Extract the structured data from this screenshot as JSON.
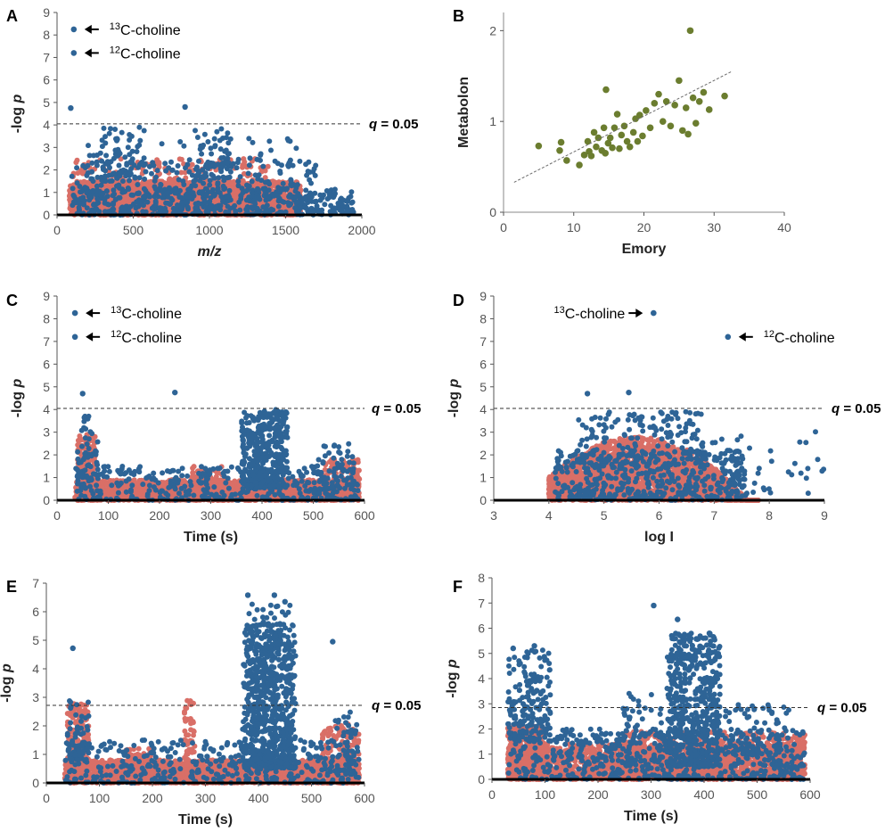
{
  "colors": {
    "blue": "#2E6496",
    "red": "#D96F67",
    "green": "#6B7D2F",
    "axis": "#000000",
    "threshold": "#333333"
  },
  "chart_data": [
    {
      "id": "A",
      "panel_label": "A",
      "type": "scatter",
      "xlabel": "m/z",
      "ylabel": "-log p",
      "xlim": [
        0,
        2000
      ],
      "ylim": [
        0,
        9
      ],
      "xticks": [
        0,
        500,
        1000,
        1500,
        2000
      ],
      "yticks": [
        0,
        1,
        2,
        3,
        4,
        5,
        6,
        7,
        8,
        9
      ],
      "threshold": {
        "y": 4.05,
        "label": "q = 0.05"
      },
      "legend": [
        {
          "label": "C-choline",
          "sup": "13",
          "x": 110,
          "y": 8.25
        },
        {
          "label": "C-choline",
          "sup": "12",
          "x": 110,
          "y": 7.2
        }
      ],
      "highlights": [
        {
          "x": 90,
          "y": 4.75
        },
        {
          "x": 840,
          "y": 4.8
        }
      ],
      "series": [
        {
          "name": "nonsignificant",
          "color": "red",
          "dense": true,
          "regions": [
            [
              80,
              1600,
              0,
              1.5,
              2500
            ],
            [
              90,
              1400,
              1,
              2.5,
              220
            ]
          ]
        },
        {
          "name": "significant",
          "color": "blue",
          "dense": true,
          "regions": [
            [
              90,
              1950,
              0,
              1.2,
              500
            ],
            [
              90,
              1700,
              0.8,
              2.4,
              200
            ],
            [
              200,
              600,
              1.5,
              3.9,
              60
            ],
            [
              900,
              1150,
              1.5,
              3.9,
              60
            ],
            [
              200,
              1600,
              2.2,
              3.4,
              60
            ]
          ]
        }
      ]
    },
    {
      "id": "B",
      "panel_label": "B",
      "type": "scatter",
      "xlabel": "Emory",
      "ylabel": "Metabolon",
      "xlim": [
        0,
        40
      ],
      "ylim": [
        0,
        2.2
      ],
      "xticks": [
        0,
        10,
        20,
        30,
        40
      ],
      "yticks": [
        0,
        1,
        2
      ],
      "trendline": {
        "x": [
          1.5,
          32.5
        ],
        "y": [
          0.33,
          1.55
        ]
      },
      "series": [
        {
          "name": "metabolites",
          "color": "green",
          "dense": false,
          "points": [
            [
              5,
              0.73
            ],
            [
              8,
              0.68
            ],
            [
              8.2,
              0.77
            ],
            [
              9,
              0.57
            ],
            [
              10.8,
              0.52
            ],
            [
              11.5,
              0.63
            ],
            [
              12,
              0.78
            ],
            [
              12.2,
              0.67
            ],
            [
              12.5,
              0.62
            ],
            [
              12.9,
              0.88
            ],
            [
              13.2,
              0.72
            ],
            [
              13.5,
              0.82
            ],
            [
              14,
              0.68
            ],
            [
              14.3,
              0.93
            ],
            [
              14.5,
              0.65
            ],
            [
              14.6,
              1.35
            ],
            [
              14.9,
              0.76
            ],
            [
              15.2,
              0.82
            ],
            [
              15.5,
              0.71
            ],
            [
              15.8,
              0.93
            ],
            [
              16.2,
              1.08
            ],
            [
              16.5,
              0.7
            ],
            [
              16.8,
              0.85
            ],
            [
              17.2,
              0.95
            ],
            [
              17.6,
              0.78
            ],
            [
              18,
              0.72
            ],
            [
              18.5,
              0.88
            ],
            [
              18.8,
              1.03
            ],
            [
              19.1,
              0.78
            ],
            [
              19.4,
              1.07
            ],
            [
              19.8,
              0.84
            ],
            [
              20.3,
              1.12
            ],
            [
              20.9,
              0.93
            ],
            [
              21.5,
              1.2
            ],
            [
              22.1,
              1.3
            ],
            [
              22.7,
              1.0
            ],
            [
              23.2,
              1.22
            ],
            [
              23.8,
              0.95
            ],
            [
              24.4,
              1.18
            ],
            [
              25,
              1.45
            ],
            [
              25.5,
              0.9
            ],
            [
              26,
              1.15
            ],
            [
              26.3,
              0.86
            ],
            [
              26.6,
              2.0
            ],
            [
              27,
              1.26
            ],
            [
              27.4,
              0.98
            ],
            [
              27.9,
              1.22
            ],
            [
              28.5,
              1.32
            ],
            [
              29.3,
              1.13
            ],
            [
              31.5,
              1.28
            ]
          ]
        }
      ]
    },
    {
      "id": "C",
      "panel_label": "C",
      "type": "scatter",
      "xlabel": "Time (s)",
      "ylabel": "-log p",
      "xlim": [
        0,
        600
      ],
      "ylim": [
        0,
        9
      ],
      "xticks": [
        0,
        100,
        200,
        300,
        400,
        500,
        600
      ],
      "yticks": [
        0,
        1,
        2,
        3,
        4,
        5,
        6,
        7,
        8,
        9
      ],
      "threshold": {
        "y": 4.05,
        "label": "q = 0.05"
      },
      "legend": [
        {
          "label": "C-choline",
          "sup": "13",
          "x": 35,
          "y": 8.25
        },
        {
          "label": "C-choline",
          "sup": "12",
          "x": 35,
          "y": 7.2
        }
      ],
      "highlights": [
        {
          "x": 50,
          "y": 4.7
        },
        {
          "x": 230,
          "y": 4.75
        }
      ],
      "series": [
        {
          "name": "nonsignificant",
          "color": "red",
          "dense": true,
          "regions": [
            [
              35,
              590,
              0,
              0.9,
              2000
            ],
            [
              40,
              75,
              0,
              2.9,
              280
            ],
            [
              520,
              590,
              0,
              1.8,
              200
            ],
            [
              260,
              330,
              0,
              1.5,
              80
            ]
          ]
        },
        {
          "name": "significant",
          "color": "blue",
          "dense": true,
          "regions": [
            [
              35,
              590,
              0,
              1.5,
              350
            ],
            [
              360,
              450,
              0.5,
              3.9,
              340
            ],
            [
              40,
              80,
              0.5,
              3.8,
              60
            ],
            [
              400,
              440,
              2.5,
              4.0,
              40
            ],
            [
              500,
              580,
              0.5,
              2.5,
              60
            ]
          ]
        }
      ]
    },
    {
      "id": "D",
      "panel_label": "D",
      "type": "scatter",
      "xlabel": "log I",
      "ylabel": "-log p",
      "xlim": [
        3,
        9
      ],
      "ylim": [
        0,
        9
      ],
      "xticks": [
        3,
        4,
        5,
        6,
        7,
        8,
        9
      ],
      "yticks": [
        0,
        1,
        2,
        3,
        4,
        5,
        6,
        7,
        8,
        9
      ],
      "threshold": {
        "y": 4.05,
        "label": "q = 0.05"
      },
      "legend": [
        {
          "label": "C-choline",
          "sup": "13",
          "x": 5.9,
          "y": 8.25,
          "text_side": "left"
        },
        {
          "label": "C-choline",
          "sup": "12",
          "x": 7.25,
          "y": 7.2,
          "text_side": "right"
        }
      ],
      "highlights": [
        {
          "x": 4.7,
          "y": 4.7
        },
        {
          "x": 5.45,
          "y": 4.75
        }
      ],
      "series": [
        {
          "name": "nonsignificant",
          "color": "red",
          "dense": true,
          "mound": true,
          "regions": [
            [
              4,
              7.8,
              0,
              2.8,
              2600
            ]
          ]
        },
        {
          "name": "significant",
          "color": "blue",
          "dense": true,
          "regions": [
            [
              4.1,
              7.6,
              0,
              2.2,
              450
            ],
            [
              4.5,
              6.8,
              1.5,
              3.9,
              180
            ],
            [
              6.5,
              9,
              0.3,
              3.1,
              55
            ]
          ]
        }
      ]
    },
    {
      "id": "E",
      "panel_label": "E",
      "type": "scatter",
      "xlabel": "Time (s)",
      "ylabel": "-log p",
      "xlim": [
        0,
        600
      ],
      "ylim": [
        0,
        7
      ],
      "xticks": [
        0,
        100,
        200,
        300,
        400,
        500,
        600
      ],
      "yticks": [
        0,
        1,
        2,
        3,
        4,
        5,
        6,
        7
      ],
      "threshold": {
        "y": 2.72,
        "label": "q = 0.05"
      },
      "highlights": [
        {
          "x": 380,
          "y": 6.58
        },
        {
          "x": 430,
          "y": 6.58
        },
        {
          "x": 450,
          "y": 6.35
        },
        {
          "x": 540,
          "y": 4.95
        },
        {
          "x": 50,
          "y": 4.72
        }
      ],
      "series": [
        {
          "name": "nonsignificant",
          "color": "red",
          "dense": true,
          "regions": [
            [
              35,
              590,
              0,
              0.8,
              1900
            ],
            [
              40,
              80,
              0,
              2.8,
              260
            ],
            [
              260,
              280,
              0,
              2.9,
              80
            ],
            [
              520,
              590,
              0,
              2.1,
              200
            ],
            [
              150,
              200,
              0,
              1.2,
              120
            ]
          ]
        },
        {
          "name": "significant",
          "color": "blue",
          "dense": true,
          "regions": [
            [
              370,
              470,
              0.5,
              5.6,
              650
            ],
            [
              380,
              460,
              3,
              6.3,
              90
            ],
            [
              35,
              590,
              0,
              1.5,
              400
            ],
            [
              40,
              80,
              0.8,
              2.9,
              60
            ],
            [
              540,
              590,
              0.3,
              2.5,
              50
            ]
          ]
        }
      ]
    },
    {
      "id": "F",
      "panel_label": "F",
      "type": "scatter",
      "xlabel": "Time (s)",
      "ylabel": "-log p",
      "xlim": [
        0,
        600
      ],
      "ylim": [
        0,
        8
      ],
      "xticks": [
        0,
        100,
        200,
        300,
        400,
        500,
        600
      ],
      "yticks": [
        0,
        1,
        2,
        3,
        4,
        5,
        6,
        7,
        8
      ],
      "threshold": {
        "y": 2.85,
        "label": "q = 0.05"
      },
      "highlights": [
        {
          "x": 305,
          "y": 6.9
        },
        {
          "x": 350,
          "y": 6.35
        },
        {
          "x": 410,
          "y": 5.8
        },
        {
          "x": 40,
          "y": 5.2
        },
        {
          "x": 80,
          "y": 5.3
        }
      ],
      "series": [
        {
          "name": "nonsignificant",
          "color": "red",
          "dense": true,
          "regions": [
            [
              30,
              100,
              0,
              2.1,
              700
            ],
            [
              100,
              590,
              0,
              1.4,
              1500
            ],
            [
              250,
              590,
              0,
              1.9,
              700
            ]
          ]
        },
        {
          "name": "significant",
          "color": "blue",
          "dense": true,
          "regions": [
            [
              30,
              110,
              1.5,
              5.2,
              170
            ],
            [
              330,
              430,
              0.5,
              5.8,
              550
            ],
            [
              30,
              590,
              0,
              2.0,
              550
            ],
            [
              240,
              320,
              0.5,
              3.5,
              70
            ],
            [
              440,
              560,
              1.0,
              3.0,
              80
            ]
          ]
        }
      ]
    }
  ]
}
